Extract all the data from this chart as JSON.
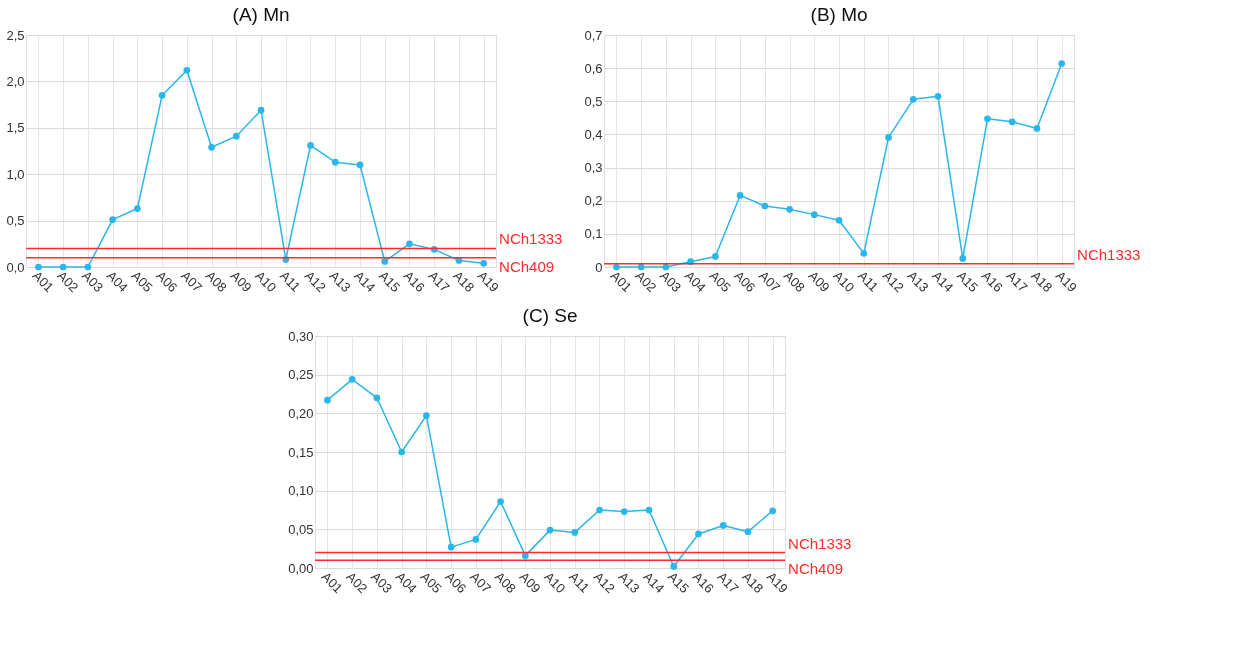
{
  "chart_data": [
    {
      "type": "line",
      "title": "(A) Mn",
      "categories": [
        "A01",
        "A02",
        "A03",
        "A04",
        "A05",
        "A06",
        "A07",
        "A08",
        "A09",
        "A10",
        "A11",
        "A12",
        "A13",
        "A14",
        "A15",
        "A16",
        "A17",
        "A18",
        "A19"
      ],
      "series": [
        {
          "color": "#29b6ea",
          "values": [
            0,
            0,
            0,
            0.51,
            0.63,
            1.85,
            2.12,
            1.29,
            1.41,
            1.69,
            0.08,
            1.31,
            1.13,
            1.1,
            0.06,
            0.25,
            0.19,
            0.07,
            0.04
          ]
        }
      ],
      "ylim": [
        0,
        2.5
      ],
      "yticks": [
        {
          "value": 0,
          "label": "0,0"
        },
        {
          "value": 0.5,
          "label": "0,5"
        },
        {
          "value": 1,
          "label": "1,0"
        },
        {
          "value": 1.5,
          "label": "1,5"
        },
        {
          "value": 2,
          "label": "2,0"
        },
        {
          "value": 2.5,
          "label": "2,5"
        }
      ],
      "ref_lines": [
        {
          "axis": "y",
          "value": 0.2,
          "label": "NCh1333",
          "color": "#ff2a2a"
        },
        {
          "axis": "y",
          "value": 0.1,
          "label": "NCh409",
          "color": "#ff2a2a"
        }
      ],
      "grid": true,
      "marker": "circle",
      "line_style": "solid",
      "legend": false
    },
    {
      "type": "line",
      "title": "(B) Mo",
      "categories": [
        "A01",
        "A02",
        "A03",
        "A04",
        "A05",
        "A06",
        "A07",
        "A08",
        "A09",
        "A10",
        "A11",
        "A12",
        "A13",
        "A14",
        "A15",
        "A16",
        "A17",
        "A18",
        "A19"
      ],
      "series": [
        {
          "color": "#29b6ea",
          "values": [
            0,
            0,
            0,
            0.016,
            0.032,
            0.216,
            0.184,
            0.174,
            0.158,
            0.141,
            0.041,
            0.391,
            0.506,
            0.515,
            0.026,
            0.447,
            0.438,
            0.418,
            0.614
          ]
        }
      ],
      "ylim": [
        0,
        0.7
      ],
      "yticks": [
        0,
        {
          "value": 0.1,
          "label": "0,1"
        },
        {
          "value": 0.2,
          "label": "0,2"
        },
        {
          "value": 0.3,
          "label": "0,3"
        },
        {
          "value": 0.4,
          "label": "0,4"
        },
        {
          "value": 0.5,
          "label": "0,5"
        },
        {
          "value": 0.6,
          "label": "0,6"
        },
        {
          "value": 0.7,
          "label": "0,7"
        }
      ],
      "ref_lines": [
        {
          "axis": "y",
          "value": 0.01,
          "label": "NCh1333",
          "color": "#ff2a2a"
        }
      ],
      "grid": true,
      "marker": "circle",
      "line_style": "solid",
      "legend": false
    },
    {
      "type": "line",
      "title": "(C) Se",
      "categories": [
        "A01",
        "A02",
        "A03",
        "A04",
        "A05",
        "A06",
        "A07",
        "A08",
        "A09",
        "A10",
        "A11",
        "A12",
        "A13",
        "A14",
        "A15",
        "A16",
        "A17",
        "A18",
        "A19"
      ],
      "series": [
        {
          "color": "#29b6ea",
          "values": [
            0.217,
            0.244,
            0.22,
            0.15,
            0.197,
            0.027,
            0.037,
            0.086,
            0.016,
            0.049,
            0.046,
            0.075,
            0.073,
            0.075,
            0.002,
            0.044,
            0.055,
            0.047,
            0.074
          ]
        }
      ],
      "ylim": [
        0,
        0.3
      ],
      "yticks": [
        {
          "value": 0,
          "label": "0,00"
        },
        {
          "value": 0.05,
          "label": "0,05"
        },
        {
          "value": 0.1,
          "label": "0,10"
        },
        {
          "value": 0.15,
          "label": "0,15"
        },
        {
          "value": 0.2,
          "label": "0,20"
        },
        {
          "value": 0.25,
          "label": "0,25"
        },
        {
          "value": 0.3,
          "label": "0,30"
        }
      ],
      "ref_lines": [
        {
          "axis": "y",
          "value": 0.02,
          "label": "NCh1333",
          "color": "#ff2a2a"
        },
        {
          "axis": "y",
          "value": 0.01,
          "label": "NCh409",
          "color": "#ff2a2a"
        }
      ],
      "grid": true,
      "marker": "circle",
      "line_style": "solid",
      "legend": false
    }
  ]
}
